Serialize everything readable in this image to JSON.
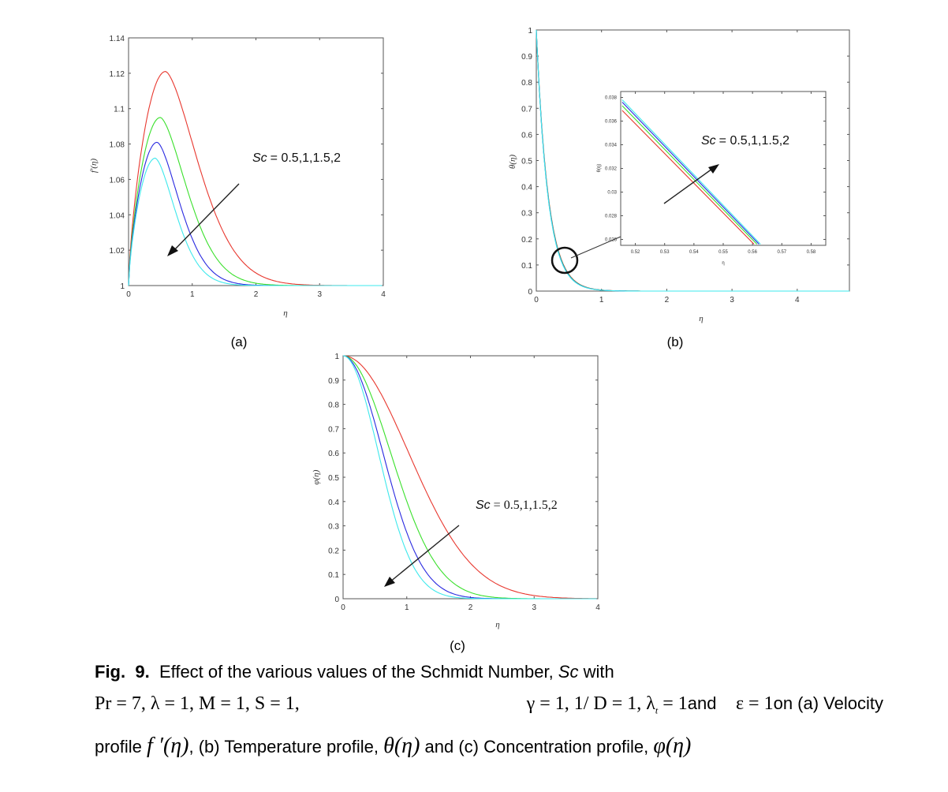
{
  "chart_data": [
    {
      "panel": "(a)",
      "type": "line",
      "xlabel": "η",
      "ylabel": "f'(η)",
      "xlim": [
        0,
        4
      ],
      "ylim": [
        1,
        1.14
      ],
      "xticks": [
        "0",
        "1",
        "2",
        "3",
        "4"
      ],
      "yticks": [
        "1",
        "1.02",
        "1.04",
        "1.06",
        "1.08",
        "1.1",
        "1.12",
        "1.14"
      ],
      "annotation": {
        "label": "Sc",
        "values": "= 0.5,1,1.5,2"
      },
      "series": [
        {
          "color": "#e8382f",
          "peak_x": 0.58,
          "peak_y": 1.121,
          "decay": 1.35
        },
        {
          "color": "#3ae02c",
          "peak_x": 0.5,
          "peak_y": 1.095,
          "decay": 1.65
        },
        {
          "color": "#2a2ae0",
          "peak_x": 0.45,
          "peak_y": 1.081,
          "decay": 1.95
        },
        {
          "color": "#3ee8ec",
          "peak_x": 0.42,
          "peak_y": 1.072,
          "decay": 2.15
        }
      ]
    },
    {
      "panel": "(b)",
      "type": "line",
      "xlabel": "η",
      "ylabel": "θ(η)",
      "xlim": [
        0,
        4.8
      ],
      "ylim": [
        0,
        1
      ],
      "xticks": [
        "0",
        "1",
        "2",
        "3",
        "4"
      ],
      "yticks": [
        "0",
        "0.1",
        "0.2",
        "0.3",
        "0.4",
        "0.5",
        "0.6",
        "0.7",
        "0.8",
        "0.9",
        "1"
      ],
      "decay": 5.5,
      "series_colors": [
        "#e8382f",
        "#3ae02c",
        "#2a2ae0",
        "#3ee8ec"
      ],
      "inset": {
        "xlabel": "η",
        "ylabel": "θ(η)",
        "xlim": [
          0.515,
          0.585
        ],
        "ylim": [
          0.0255,
          0.0385
        ],
        "xticks": [
          "0.52",
          "0.53",
          "0.54",
          "0.55",
          "0.56",
          "0.57",
          "0.58"
        ],
        "yticks": [
          "0.026",
          "0.028",
          "0.03",
          "0.032",
          "0.034",
          "0.036",
          "0.038"
        ],
        "lines": [
          {
            "color": "#e8382f",
            "x1": 0.5155,
            "y1": 0.0369,
            "x2": 0.5605,
            "y2": 0.0256
          },
          {
            "color": "#3ae02c",
            "x1": 0.5155,
            "y1": 0.0373,
            "x2": 0.5615,
            "y2": 0.0256
          },
          {
            "color": "#2a2ae0",
            "x1": 0.5155,
            "y1": 0.0376,
            "x2": 0.5622,
            "y2": 0.0256
          },
          {
            "color": "#3ee8ec",
            "x1": 0.5155,
            "y1": 0.0378,
            "x2": 0.5627,
            "y2": 0.0256
          }
        ]
      },
      "annotation": {
        "label": "Sc",
        "values": "= 0.5,1,1.5,2"
      }
    },
    {
      "panel": "(c)",
      "type": "line",
      "xlabel": "η",
      "ylabel": "φ(η)",
      "xlim": [
        0,
        4
      ],
      "ylim": [
        0,
        1
      ],
      "xticks": [
        "0",
        "1",
        "2",
        "3",
        "4"
      ],
      "yticks": [
        "0",
        "0.1",
        "0.2",
        "0.3",
        "0.4",
        "0.5",
        "0.6",
        "0.7",
        "0.8",
        "0.9",
        "1"
      ],
      "annotation": {
        "label": "Sc",
        "values": "= 0.5,1,1.5,2"
      },
      "series": [
        {
          "color": "#e8382f",
          "sigma": 1.02
        },
        {
          "color": "#3ae02c",
          "sigma": 0.74
        },
        {
          "color": "#2a2ae0",
          "sigma": 0.62
        },
        {
          "color": "#3ee8ec",
          "sigma": 0.55
        }
      ]
    }
  ],
  "caption": {
    "fig_label": "Fig.",
    "fig_number": "9.",
    "text1": "Effect of the various values of the Schmidt Number, ",
    "sc": "Sc",
    "text2": " with",
    "params1": "Pr = 7, λ = 1, M = 1, S = 1,",
    "params2": "γ = 1, 1/ D = 1, λ",
    "params2_sub": "t",
    "params2_end": " = 1",
    "and": "and",
    "eps": "ε = 1",
    "on_a": "on  (a)  Velocity",
    "line3a": "profile ",
    "f_expr": "f ′(η)",
    "line3b": ", (b) Temperature profile, ",
    "theta_expr": "θ(η)",
    "line3c": " and (c) Concentration profile, ",
    "phi_expr": "φ(η)"
  }
}
